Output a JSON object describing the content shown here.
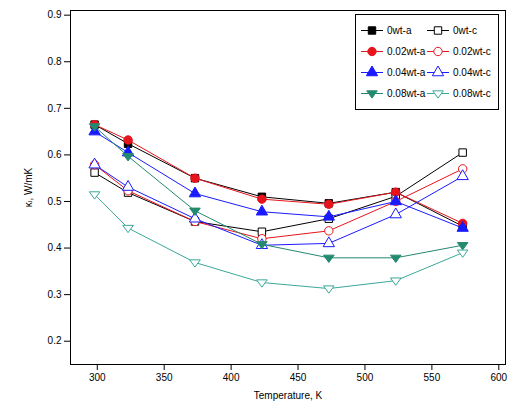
{
  "chart_data": {
    "type": "line",
    "x_label": "Temperature, K",
    "y_label": "κₗ, W/mK",
    "x": [
      298,
      323,
      373,
      423,
      473,
      523,
      573
    ],
    "series": [
      {
        "name": "0wt-a",
        "color": "#000000",
        "marker": "square",
        "values": [
          0.665,
          0.624,
          0.55,
          0.51,
          0.496,
          0.52,
          0.447
        ]
      },
      {
        "name": "0wt-c",
        "color": "#000000",
        "marker": "open-square",
        "values": [
          0.562,
          0.519,
          0.457,
          0.435,
          0.463,
          0.511,
          0.605
        ]
      },
      {
        "name": "0.02wt-a",
        "color": "#e8141c",
        "marker": "circle",
        "values": [
          0.665,
          0.632,
          0.55,
          0.505,
          0.494,
          0.52,
          0.453
        ]
      },
      {
        "name": "0.02wt-c",
        "color": "#e8141c",
        "marker": "open-circle",
        "values": [
          0.579,
          0.523,
          0.457,
          0.42,
          0.437,
          0.5,
          0.57
        ]
      },
      {
        "name": "0.04wt-a",
        "color": "#1a1aff",
        "marker": "triangle",
        "values": [
          0.65,
          0.605,
          0.517,
          0.478,
          0.467,
          0.5,
          0.443
        ]
      },
      {
        "name": "0.04wt-c",
        "color": "#1a1aff",
        "marker": "open-triangle",
        "values": [
          0.579,
          0.531,
          0.463,
          0.406,
          0.41,
          0.472,
          0.554
        ]
      },
      {
        "name": "0.08wt-a",
        "color": "#23896f",
        "marker": "triangle-down",
        "values": [
          0.661,
          0.597,
          0.48,
          0.408,
          0.379,
          0.379,
          0.406
        ]
      },
      {
        "name": "0.08wt-c",
        "color": "#3aa899",
        "marker": "open-triangle-down",
        "values": [
          0.515,
          0.443,
          0.369,
          0.326,
          0.313,
          0.33,
          0.39
        ]
      }
    ],
    "xlim": [
      280,
      605
    ],
    "xticks": [
      300,
      350,
      400,
      450,
      500,
      550,
      600
    ],
    "ylim": [
      0.15,
      0.91
    ],
    "yticks": [
      0.2,
      0.3,
      0.4,
      0.5,
      0.6,
      0.7,
      0.8,
      0.9
    ],
    "grid": false,
    "legend": "top-right"
  }
}
